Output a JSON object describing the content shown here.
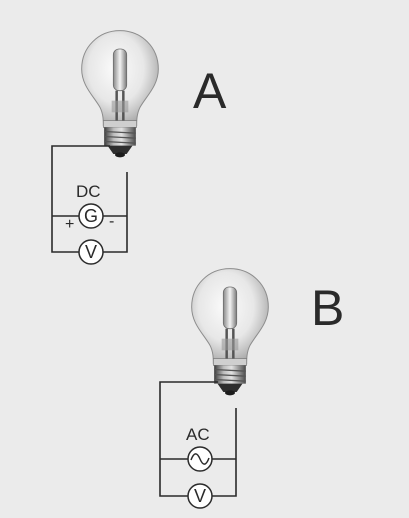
{
  "bulb_a": {
    "label": "A",
    "source_type": "DC",
    "source_symbol": "G",
    "polarity_plus": "+",
    "polarity_minus": "-",
    "meter_symbol": "V"
  },
  "bulb_b": {
    "label": "B",
    "source_type": "AC",
    "source_symbol": "~",
    "meter_symbol": "V"
  },
  "colors": {
    "background": "#ebebeb",
    "wire": "#2b2b2b",
    "text": "#2a2a2a"
  }
}
